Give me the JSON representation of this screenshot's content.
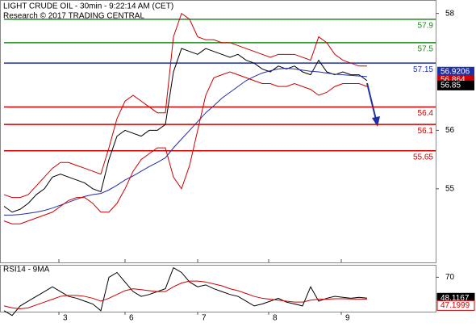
{
  "chart_data": [
    {
      "type": "line",
      "title": "LIGHT CRUDE OIL - 30min - 9:22:14 AM (CET)",
      "subtitle": "Research © 2017 TRADING CENTRAL",
      "xlim": [
        -0.5,
        53.5
      ],
      "ylim": [
        53.74,
        58.23
      ],
      "yticks": [
        55,
        56,
        58
      ],
      "series": [
        {
          "color": "#000000",
          "values": [
            54.7,
            54.6,
            54.65,
            54.75,
            54.9,
            55.0,
            55.2,
            55.25,
            55.2,
            55.15,
            55.1,
            55.0,
            54.95,
            55.5,
            55.9,
            56.0,
            55.95,
            55.9,
            56.0,
            56.0,
            56.1,
            57.0,
            57.4,
            57.35,
            57.3,
            57.4,
            57.35,
            57.3,
            57.25,
            57.3,
            57.2,
            57.15,
            57.05,
            57.0,
            57.1,
            57.05,
            57.1,
            57.0,
            56.95,
            57.2,
            57.0,
            56.95,
            57.0,
            56.95,
            56.95,
            56.85
          ]
        },
        {
          "color": "#1f2fa8",
          "values": [
            54.55,
            54.55,
            54.56,
            54.58,
            54.6,
            54.63,
            54.67,
            54.72,
            54.77,
            54.82,
            54.87,
            54.9,
            54.92,
            54.98,
            55.06,
            55.15,
            55.22,
            55.3,
            55.38,
            55.45,
            55.53,
            55.7,
            55.85,
            56.0,
            56.15,
            56.3,
            56.42,
            56.55,
            56.65,
            56.75,
            56.85,
            56.92,
            56.98,
            57.02,
            57.05,
            57.06,
            57.05,
            57.03,
            57.01,
            57.0,
            56.98,
            56.96,
            56.95,
            56.94,
            56.93,
            56.92
          ]
        },
        {
          "color": "#cc0000",
          "values": [
            54.9,
            54.85,
            54.85,
            54.9,
            55.05,
            55.2,
            55.35,
            55.45,
            55.45,
            55.4,
            55.35,
            55.3,
            55.25,
            55.7,
            56.2,
            56.5,
            56.6,
            56.5,
            56.4,
            56.3,
            56.3,
            57.6,
            58.0,
            57.9,
            57.6,
            57.55,
            57.55,
            57.5,
            57.5,
            57.45,
            57.4,
            57.35,
            57.3,
            57.25,
            57.3,
            57.3,
            57.3,
            57.25,
            57.2,
            57.6,
            57.5,
            57.3,
            57.2,
            57.15,
            57.1,
            57.1
          ]
        },
        {
          "color": "#cc0000",
          "values": [
            54.45,
            54.4,
            54.4,
            54.45,
            54.5,
            54.55,
            54.6,
            54.7,
            54.8,
            54.85,
            54.85,
            54.75,
            54.6,
            54.6,
            54.75,
            55.0,
            55.3,
            55.5,
            55.6,
            55.7,
            55.7,
            55.2,
            55.0,
            55.4,
            56.0,
            56.6,
            56.9,
            56.95,
            57.0,
            56.95,
            56.9,
            56.85,
            56.8,
            56.8,
            56.75,
            56.75,
            56.8,
            56.75,
            56.7,
            56.6,
            56.65,
            56.75,
            56.8,
            56.8,
            56.8,
            56.75
          ]
        }
      ],
      "levels": [
        57.9,
        57.5,
        57.15,
        56.4,
        56.1,
        55.65
      ],
      "level_colors": [
        "#1a8a1a",
        "#1a8a1a",
        "#1f2fa8",
        "#cc0000",
        "#cc0000",
        "#cc0000"
      ],
      "value_tags": [
        {
          "value": 56.9206,
          "color": "#1f2fa8"
        },
        {
          "value": 56.864,
          "color": "#cc0000"
        },
        {
          "value": 56.85,
          "color": "#000000"
        }
      ]
    },
    {
      "type": "line",
      "title": "RSI14 - 9MA",
      "xlim": [
        -0.5,
        53.5
      ],
      "ylim": [
        34,
        83
      ],
      "yticks": [
        70
      ],
      "xticks": [
        {
          "value": 6.8,
          "label": "3"
        },
        {
          "value": 15,
          "label": "6"
        },
        {
          "value": 24,
          "label": "7"
        },
        {
          "value": 32.8,
          "label": "8"
        },
        {
          "value": 41.8,
          "label": "9"
        }
      ],
      "series": [
        {
          "color": "#000000",
          "values": [
            35,
            30,
            40,
            45,
            50,
            55,
            60,
            55,
            50,
            48,
            45,
            42,
            35,
            70,
            75,
            65,
            55,
            50,
            52,
            55,
            58,
            80,
            75,
            65,
            60,
            62,
            58,
            55,
            52,
            50,
            45,
            40,
            42,
            45,
            48,
            44,
            42,
            40,
            60,
            45,
            48,
            50,
            49,
            48,
            49,
            48.1167
          ]
        },
        {
          "color": "#cc0000",
          "values": [
            40,
            38,
            37,
            38,
            41,
            44,
            47,
            50,
            51,
            51,
            50,
            48,
            45,
            48,
            52,
            56,
            58,
            57,
            56,
            55,
            55,
            60,
            64,
            66,
            66,
            65,
            63,
            61,
            58,
            56,
            53,
            50,
            48,
            47,
            46,
            45,
            44,
            44,
            46,
            47,
            47,
            47.5,
            47.5,
            47.3,
            47.2,
            47.1999
          ]
        }
      ]
    }
  ]
}
